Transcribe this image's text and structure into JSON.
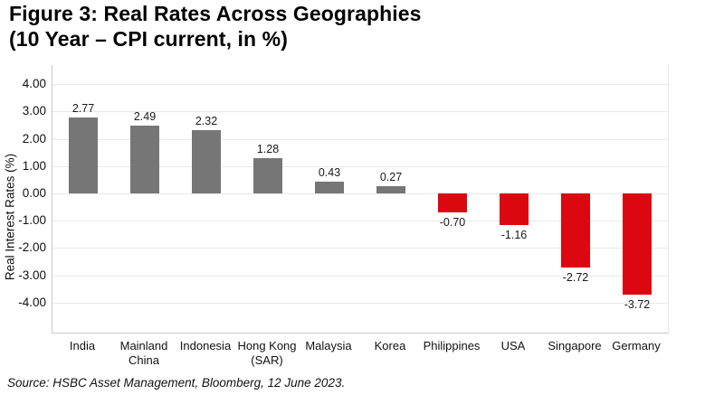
{
  "title": {
    "line1": "Figure 3: Real Rates Across Geographies",
    "line2": "(10 Year – CPI current, in %)"
  },
  "source": "Source: HSBC Asset Management, Bloomberg, 12 June 2023.",
  "chart_data": {
    "type": "bar",
    "title": "Figure 3: Real Rates Across Geographies (10 Year – CPI current, in %)",
    "categories": [
      "India",
      "Mainland China",
      "Indonesia",
      "Hong Kong (SAR)",
      "Malaysia",
      "Korea",
      "Philippines",
      "USA",
      "Singapore",
      "Germany"
    ],
    "values": [
      2.77,
      2.49,
      2.32,
      1.28,
      0.43,
      0.27,
      -0.7,
      -1.16,
      -2.72,
      -3.72
    ],
    "value_labels": [
      "2.77",
      "2.49",
      "2.32",
      "1.28",
      "0.43",
      "0.27",
      "-0.70",
      "-1.16",
      "-2.72",
      "-3.72"
    ],
    "xlabel": "",
    "ylabel": "Real Interest Rates (%)",
    "y_ticks": [
      4,
      3,
      2,
      1,
      0,
      -1,
      -2,
      -3,
      -4
    ],
    "y_tick_labels": [
      "4.00",
      "3.00",
      "2.00",
      "1.00",
      "0.00",
      "-1.00",
      "-2.00",
      "-3.00",
      "-4.00"
    ],
    "ylim": [
      -5.1,
      4.7
    ],
    "grid": true,
    "legend": "none",
    "colors": {
      "positive": "#767676",
      "negative": "#db0711"
    }
  }
}
